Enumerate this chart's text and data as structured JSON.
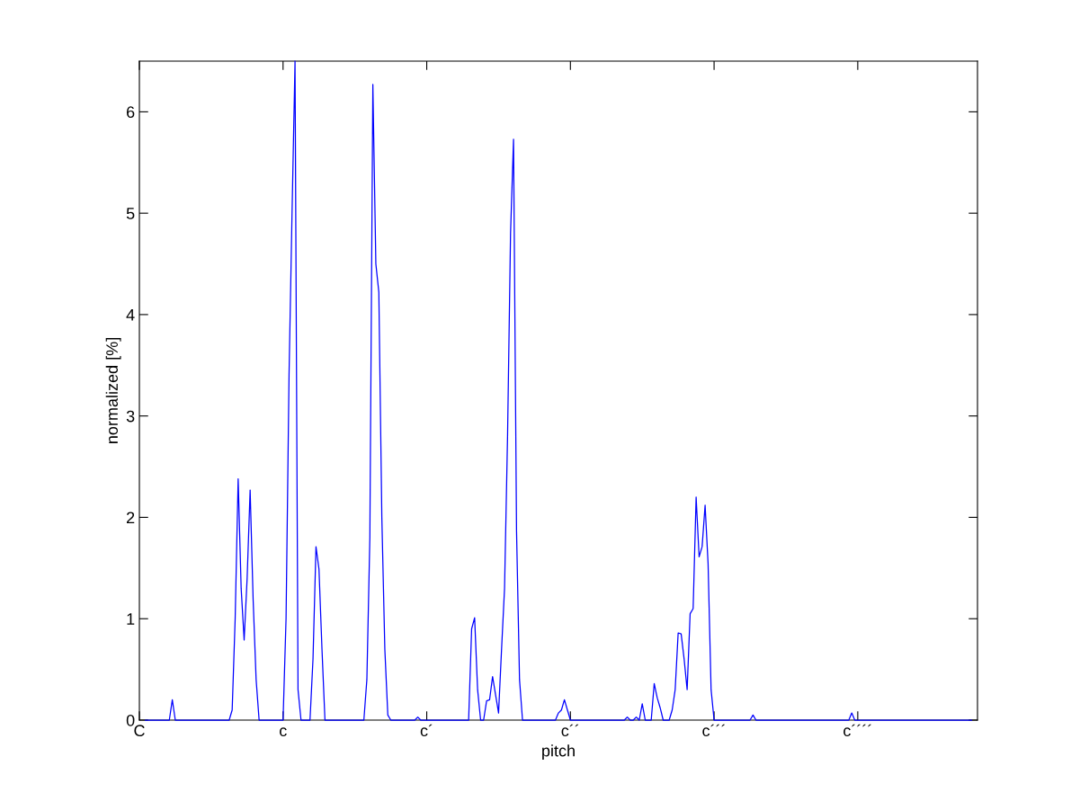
{
  "chart_data": {
    "type": "line",
    "xlabel": "pitch",
    "ylabel": "normalized [%]",
    "ylim": [
      0,
      6.5
    ],
    "yticks": [
      0,
      1,
      2,
      3,
      4,
      5,
      6
    ],
    "grid": false,
    "marker": "none",
    "line_style": "solid",
    "categories": [
      "C",
      null,
      null,
      null,
      null,
      null,
      null,
      null,
      null,
      null,
      null,
      null,
      null,
      null,
      null,
      null,
      null,
      null,
      null,
      null,
      null,
      null,
      null,
      null,
      null,
      null,
      null,
      null,
      null,
      null,
      null,
      null,
      null,
      null,
      null,
      null,
      null,
      null,
      null,
      null,
      null,
      null,
      null,
      null,
      null,
      null,
      null,
      null,
      "c",
      null,
      null,
      null,
      null,
      null,
      null,
      null,
      null,
      null,
      null,
      null,
      null,
      null,
      null,
      null,
      null,
      null,
      null,
      null,
      null,
      null,
      null,
      null,
      null,
      null,
      null,
      null,
      null,
      null,
      null,
      null,
      null,
      null,
      null,
      null,
      null,
      null,
      null,
      null,
      null,
      null,
      null,
      null,
      null,
      null,
      null,
      null,
      "c´",
      null,
      null,
      null,
      null,
      null,
      null,
      null,
      null,
      null,
      null,
      null,
      null,
      null,
      null,
      null,
      null,
      null,
      null,
      null,
      null,
      null,
      null,
      null,
      null,
      null,
      null,
      null,
      null,
      null,
      null,
      null,
      null,
      null,
      null,
      null,
      null,
      null,
      null,
      null,
      null,
      null,
      null,
      null,
      null,
      null,
      null,
      null,
      "c´´",
      null,
      null,
      null,
      null,
      null,
      null,
      null,
      null,
      null,
      null,
      null,
      null,
      null,
      null,
      null,
      null,
      null,
      null,
      null,
      null,
      null,
      null,
      null,
      null,
      null,
      null,
      null,
      null,
      null,
      null,
      null,
      null,
      null,
      null,
      null,
      null,
      null,
      null,
      null,
      null,
      null,
      null,
      null,
      null,
      null,
      null,
      null,
      "c´´´",
      null,
      null,
      null,
      null,
      null,
      null,
      null,
      null,
      null,
      null,
      null,
      null,
      null,
      null,
      null,
      null,
      null,
      null,
      null,
      null,
      null,
      null,
      null,
      null,
      null,
      null,
      null,
      null,
      null,
      null,
      null,
      null,
      null,
      null,
      null,
      null,
      null,
      null,
      null,
      null,
      null,
      null,
      null,
      null,
      null,
      null,
      null,
      "c´´´´",
      null,
      null,
      null,
      null,
      null,
      null,
      null,
      null,
      null,
      null,
      null,
      null,
      null,
      null,
      null,
      null,
      null,
      null,
      null,
      null,
      null,
      null,
      null,
      null,
      null,
      null,
      null,
      null,
      null,
      null,
      null,
      null,
      null,
      null,
      null,
      null,
      null,
      null,
      null,
      null
    ],
    "series": [
      {
        "color": "#0000ff",
        "values": [
          null,
          null,
          0,
          0,
          0,
          0,
          0,
          0,
          0,
          0,
          0,
          0.2,
          0,
          0,
          0,
          0,
          0,
          0,
          0,
          0,
          0,
          0,
          0,
          0,
          0,
          0,
          0,
          0,
          0,
          0,
          0,
          0.1,
          1.0,
          2.38,
          1.3,
          0.79,
          1.4,
          2.27,
          1.19,
          0.4,
          0,
          0,
          0,
          0,
          0,
          0,
          0,
          0,
          0,
          1.0,
          3.4,
          5.0,
          6.5,
          0.3,
          0,
          0,
          0,
          0,
          0.6,
          1.71,
          1.49,
          0.7,
          0,
          0,
          0,
          0,
          0,
          0,
          0,
          0,
          0,
          0,
          0,
          0,
          0,
          0,
          0.4,
          1.8,
          6.27,
          4.5,
          4.22,
          2.0,
          0.7,
          0.05,
          0,
          0,
          0,
          0,
          0,
          0,
          0,
          0,
          0,
          0.03,
          0,
          0,
          0,
          0,
          0,
          0,
          0,
          0,
          0,
          0,
          0,
          0,
          0,
          0,
          0,
          0,
          0,
          0.9,
          1.01,
          0.3,
          0,
          0,
          0.19,
          0.2,
          0.43,
          0.25,
          0.07,
          0.7,
          1.3,
          2.8,
          4.8,
          5.73,
          1.87,
          0.4,
          0,
          0,
          0,
          0,
          0,
          0,
          0,
          0,
          0,
          0,
          0,
          0,
          0.07,
          0.1,
          0.2,
          0.1,
          0,
          0,
          0,
          0,
          0,
          0,
          0,
          0,
          0,
          0,
          0,
          0,
          0,
          0,
          0,
          0,
          0,
          0,
          0,
          0.03,
          0,
          0,
          0.03,
          0,
          0.16,
          0,
          0,
          0,
          0.36,
          0.22,
          0.12,
          0,
          0,
          0,
          0.1,
          0.3,
          0.86,
          0.85,
          0.6,
          0.3,
          1.05,
          1.1,
          2.2,
          1.61,
          1.71,
          2.12,
          1.54,
          0.3,
          0,
          0,
          0,
          0,
          0,
          0,
          0,
          0,
          0,
          0,
          0,
          0,
          0,
          0.05,
          0,
          0,
          0,
          0,
          0,
          0,
          0,
          0,
          0,
          0,
          0,
          0,
          0,
          0,
          0,
          0,
          0,
          0,
          0,
          0,
          0,
          0,
          0,
          0,
          0,
          0,
          0,
          0,
          0,
          0,
          0,
          0,
          0.07,
          0,
          0,
          0,
          0,
          0,
          0,
          0,
          0,
          0,
          0,
          0,
          0,
          0,
          0,
          0,
          0,
          0,
          0,
          0,
          0,
          0,
          0,
          0,
          0,
          0,
          0,
          0,
          0,
          0,
          0,
          0,
          0,
          0,
          0,
          0,
          0,
          0,
          0,
          0,
          0,
          null,
          null
        ]
      }
    ]
  }
}
